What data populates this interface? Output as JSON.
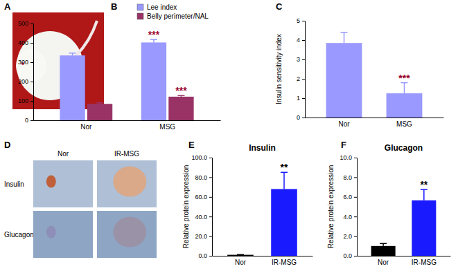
{
  "panel_labels": [
    "A",
    "B",
    "C",
    "D",
    "E",
    "F"
  ],
  "image_panel": {
    "columns": [
      "Nor",
      "IR-MSG"
    ],
    "rows": [
      "Insulin",
      "Glucagon"
    ]
  },
  "chart_data": [
    {
      "type": "bar",
      "categories": [
        "Nor",
        "MSG"
      ],
      "series": [
        {
          "name": "Lee index",
          "color": "#9999ff",
          "values": [
            335,
            402
          ],
          "errors": [
            12,
            15
          ],
          "significance": [
            null,
            "***"
          ]
        },
        {
          "name": "Belly perimeter/NAL",
          "color": "#993366",
          "values": [
            85,
            122
          ],
          "errors": [
            5,
            6
          ],
          "significance": [
            null,
            "***"
          ]
        }
      ],
      "ylim": [
        0,
        500
      ],
      "yticks": [
        0,
        100,
        200,
        300,
        400,
        500
      ],
      "legend": "top"
    },
    {
      "type": "bar",
      "categories": [
        "Nor",
        "MSG"
      ],
      "y_label": "Insulin sensitivity index",
      "series": [
        {
          "name": "Insulin sensitivity index",
          "color": "#9999ff",
          "values": [
            3.85,
            1.25
          ],
          "errors": [
            0.55,
            0.55
          ],
          "significance": [
            null,
            "***"
          ]
        }
      ],
      "ylim": [
        0,
        5
      ],
      "yticks": [
        0,
        1,
        2,
        3,
        4,
        5
      ]
    },
    {
      "type": "bar",
      "title": "Insulin",
      "y_label": "Relative protein expression",
      "categories": [
        "Nor",
        "IR-MSG"
      ],
      "series": [
        {
          "name": "Insulin",
          "colors": [
            "#000000",
            "#1a1aff"
          ],
          "values": [
            1,
            68
          ],
          "errors": [
            0.3,
            17
          ],
          "significance": [
            null,
            "**"
          ]
        }
      ],
      "ylim": [
        0,
        100
      ],
      "yticks": [
        {
          "value": 0,
          "label": "0.0"
        },
        {
          "value": 20,
          "label": "20.0"
        },
        {
          "value": 40,
          "label": "40.0"
        },
        {
          "value": 60,
          "label": "60.0"
        },
        {
          "value": 80,
          "label": "80.0"
        },
        {
          "value": 100,
          "label": "100.0"
        }
      ]
    },
    {
      "type": "bar",
      "title": "Glucagon",
      "y_label": "Relative protein expression",
      "categories": [
        "Nor",
        "IR-MSG"
      ],
      "series": [
        {
          "name": "Glucagon",
          "colors": [
            "#000000",
            "#1a1aff"
          ],
          "values": [
            1.0,
            5.65
          ],
          "errors": [
            0.25,
            1.1
          ],
          "significance": [
            null,
            "**"
          ]
        }
      ],
      "ylim": [
        0,
        10
      ],
      "yticks": [
        {
          "value": 0,
          "label": "0.0"
        },
        {
          "value": 2,
          "label": "2.0"
        },
        {
          "value": 4,
          "label": "4.0"
        },
        {
          "value": 6,
          "label": "6.0"
        },
        {
          "value": 8,
          "label": "8.0"
        },
        {
          "value": 10,
          "label": "10.0"
        }
      ]
    }
  ]
}
